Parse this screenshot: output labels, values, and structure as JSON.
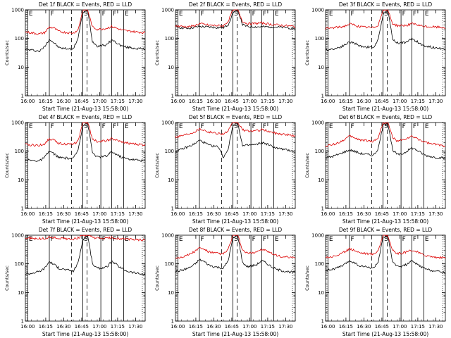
{
  "chart_data": [
    {
      "type": "line",
      "title": "Det 1f BLACK = Events, RED = LLD",
      "xlabel": "Start Time (21-Aug-13 15:58:00)",
      "ylabel": "Counts/sec",
      "ylim": [
        1,
        1000
      ],
      "yscale": "log",
      "xlim_minutes": [
        0,
        100
      ],
      "x_ticks": [
        "16:00",
        "16:15",
        "16:30",
        "16:45",
        "17:00",
        "17:15",
        "17:30"
      ],
      "y_ticks": [
        "1",
        "10",
        "100",
        "1000"
      ],
      "markers": [
        {
          "label": "E",
          "time": "16:00"
        },
        {
          "label": "F",
          "time": "16:18"
        },
        {
          "label": "S",
          "time": "16:46"
        },
        {
          "label": "F",
          "time": "17:01"
        },
        {
          "label": "F",
          "time": "17:10"
        },
        {
          "label": "E",
          "time": "17:20"
        }
      ],
      "series": [
        {
          "name": "BLACK",
          "color": "#000000",
          "values": [
            42,
            40,
            38,
            36,
            52,
            95,
            70,
            48,
            45,
            44,
            43,
            105,
            800,
            1000,
            78,
            55,
            58,
            60,
            90,
            72,
            56,
            50,
            48,
            45,
            44,
            42
          ]
        },
        {
          "name": "RED",
          "color": "#dd0000",
          "values": [
            170,
            160,
            150,
            145,
            160,
            250,
            230,
            175,
            165,
            160,
            155,
            200,
            1000,
            1000,
            250,
            210,
            215,
            230,
            260,
            230,
            200,
            185,
            180,
            170,
            165,
            160
          ]
        }
      ]
    },
    {
      "type": "line",
      "title": "Det 2f BLACK = Events, RED = LLD",
      "xlabel": "Start Time (21-Aug-13 15:58:00)",
      "ylabel": "Counts/sec",
      "ylim": [
        1,
        1000
      ],
      "yscale": "log",
      "xlim_minutes": [
        0,
        100
      ],
      "x_ticks": [
        "16:00",
        "16:15",
        "16:30",
        "16:45",
        "17:00",
        "17:15",
        "17:30"
      ],
      "y_ticks": [
        "1",
        "10",
        "100",
        "1000"
      ],
      "markers": [
        {
          "label": "E",
          "time": "16:00"
        },
        {
          "label": "F",
          "time": "16:18"
        },
        {
          "label": "S",
          "time": "16:46"
        },
        {
          "label": "F",
          "time": "17:01"
        },
        {
          "label": "F",
          "time": "17:10"
        },
        {
          "label": "E",
          "time": "17:20"
        }
      ],
      "series": [
        {
          "name": "BLACK",
          "color": "#000000",
          "values": [
            250,
            240,
            230,
            230,
            245,
            260,
            255,
            250,
            245,
            240,
            235,
            300,
            800,
            1000,
            300,
            260,
            255,
            255,
            255,
            255,
            255,
            250,
            245,
            240,
            230,
            220
          ]
        },
        {
          "name": "RED",
          "color": "#dd0000",
          "values": [
            270,
            265,
            260,
            260,
            280,
            330,
            310,
            290,
            285,
            280,
            275,
            400,
            1000,
            1000,
            400,
            330,
            330,
            340,
            350,
            330,
            310,
            300,
            290,
            280,
            270,
            260
          ]
        }
      ]
    },
    {
      "type": "line",
      "title": "Det 3f BLACK = Events, RED = LLD",
      "xlabel": "Start Time (21-Aug-13 15:58:00)",
      "ylabel": "Counts/sec",
      "ylim": [
        1,
        1000
      ],
      "yscale": "log",
      "xlim_minutes": [
        0,
        100
      ],
      "x_ticks": [
        "16:00",
        "16:15",
        "16:30",
        "16:45",
        "17:00",
        "17:15",
        "17:30"
      ],
      "y_ticks": [
        "1",
        "10",
        "100",
        "1000"
      ],
      "markers": [
        {
          "label": "E",
          "time": "16:00"
        },
        {
          "label": "F",
          "time": "16:18"
        },
        {
          "label": "S",
          "time": "16:46"
        },
        {
          "label": "F",
          "time": "17:01"
        },
        {
          "label": "F",
          "time": "17:10"
        },
        {
          "label": "E",
          "time": "17:20"
        }
      ],
      "series": [
        {
          "name": "BLACK",
          "color": "#000000",
          "values": [
            40,
            42,
            45,
            50,
            60,
            75,
            70,
            55,
            52,
            50,
            48,
            90,
            700,
            1000,
            95,
            70,
            72,
            75,
            100,
            80,
            60,
            55,
            50,
            48,
            45,
            42
          ]
        },
        {
          "name": "RED",
          "color": "#dd0000",
          "values": [
            220,
            230,
            240,
            250,
            270,
            320,
            300,
            260,
            250,
            245,
            240,
            300,
            1000,
            1000,
            330,
            280,
            285,
            290,
            330,
            300,
            270,
            260,
            255,
            250,
            245,
            240
          ]
        }
      ]
    },
    {
      "type": "line",
      "title": "Det 4f BLACK = Events, RED = LLD",
      "xlabel": "Start Time (21-Aug-13 15:58:00)",
      "ylabel": "Counts/sec",
      "ylim": [
        1,
        1000
      ],
      "yscale": "log",
      "xlim_minutes": [
        0,
        100
      ],
      "x_ticks": [
        "16:00",
        "16:15",
        "16:30",
        "16:45",
        "17:00",
        "17:15",
        "17:30"
      ],
      "y_ticks": [
        "1",
        "10",
        "100",
        "1000"
      ],
      "markers": [
        {
          "label": "E",
          "time": "16:00"
        },
        {
          "label": "F",
          "time": "16:18"
        },
        {
          "label": "S",
          "time": "16:46"
        },
        {
          "label": "F",
          "time": "17:01"
        },
        {
          "label": "F",
          "time": "17:10"
        },
        {
          "label": "E",
          "time": "17:20"
        }
      ],
      "series": [
        {
          "name": "BLACK",
          "color": "#000000",
          "values": [
            50,
            48,
            47,
            46,
            60,
            100,
            80,
            60,
            58,
            56,
            55,
            110,
            800,
            1000,
            90,
            62,
            64,
            68,
            95,
            78,
            62,
            55,
            52,
            50,
            48,
            45
          ]
        },
        {
          "name": "RED",
          "color": "#dd0000",
          "values": [
            170,
            165,
            160,
            160,
            180,
            270,
            240,
            190,
            180,
            175,
            170,
            230,
            1000,
            1000,
            270,
            220,
            225,
            235,
            270,
            240,
            210,
            195,
            185,
            175,
            170,
            165
          ]
        }
      ]
    },
    {
      "type": "line",
      "title": "Det 5f BLACK = Events, RED = LLD",
      "xlabel": "Start Time (21-Aug-13 15:58:00)",
      "ylabel": "Counts/sec",
      "ylim": [
        1,
        1000
      ],
      "yscale": "log",
      "xlim_minutes": [
        0,
        100
      ],
      "x_ticks": [
        "16:00",
        "16:15",
        "16:30",
        "16:45",
        "17:00",
        "17:15",
        "17:30"
      ],
      "y_ticks": [
        "1",
        "10",
        "100",
        "1000"
      ],
      "markers": [
        {
          "label": "E",
          "time": "16:00"
        },
        {
          "label": "F",
          "time": "16:18"
        },
        {
          "label": "S",
          "time": "16:46"
        },
        {
          "label": "F",
          "time": "17:01"
        },
        {
          "label": "F",
          "time": "17:10"
        },
        {
          "label": "E",
          "time": "17:20"
        }
      ],
      "series": [
        {
          "name": "BLACK",
          "color": "#000000",
          "values": [
            100,
            110,
            130,
            150,
            180,
            240,
            200,
            160,
            150,
            140,
            60,
            120,
            800,
            1000,
            150,
            160,
            165,
            170,
            200,
            180,
            150,
            130,
            120,
            110,
            105,
            100
          ]
        },
        {
          "name": "RED",
          "color": "#dd0000",
          "values": [
            320,
            340,
            380,
            420,
            480,
            600,
            550,
            460,
            440,
            420,
            400,
            500,
            1000,
            1000,
            560,
            500,
            510,
            520,
            560,
            520,
            460,
            420,
            400,
            380,
            360,
            340
          ]
        }
      ]
    },
    {
      "type": "line",
      "title": "Det 6f BLACK = Events, RED = LLD",
      "xlabel": "Start Time (21-Aug-13 15:58:00)",
      "ylabel": "Counts/sec",
      "ylim": [
        1,
        1000
      ],
      "yscale": "log",
      "xlim_minutes": [
        0,
        100
      ],
      "x_ticks": [
        "16:00",
        "16:15",
        "16:30",
        "16:45",
        "17:00",
        "17:15",
        "17:30"
      ],
      "y_ticks": [
        "1",
        "10",
        "100",
        "1000"
      ],
      "markers": [
        {
          "label": "E",
          "time": "16:00"
        },
        {
          "label": "F",
          "time": "16:18"
        },
        {
          "label": "S",
          "time": "16:46"
        },
        {
          "label": "F",
          "time": "17:01"
        },
        {
          "label": "F",
          "time": "17:10"
        },
        {
          "label": "E",
          "time": "17:20"
        }
      ],
      "series": [
        {
          "name": "BLACK",
          "color": "#000000",
          "values": [
            60,
            62,
            70,
            80,
            95,
            110,
            100,
            85,
            80,
            75,
            72,
            120,
            800,
            1000,
            110,
            75,
            80,
            100,
            130,
            110,
            85,
            70,
            65,
            60,
            58,
            55
          ]
        },
        {
          "name": "RED",
          "color": "#dd0000",
          "values": [
            150,
            160,
            180,
            210,
            260,
            330,
            300,
            250,
            240,
            230,
            220,
            300,
            1000,
            1000,
            300,
            220,
            240,
            280,
            320,
            280,
            230,
            200,
            180,
            170,
            160,
            150
          ]
        }
      ]
    },
    {
      "type": "line",
      "title": "Det 7f BLACK = Events, RED = LLD",
      "xlabel": "Start Time (21-Aug-13 15:58:00)",
      "ylabel": "Counts/sec",
      "ylim": [
        1,
        1000
      ],
      "yscale": "log",
      "xlim_minutes": [
        0,
        100
      ],
      "x_ticks": [
        "16:00",
        "16:15",
        "16:30",
        "16:45",
        "17:00",
        "17:15",
        "17:30"
      ],
      "y_ticks": [
        "1",
        "10",
        "100",
        "1000"
      ],
      "markers": [
        {
          "label": "E",
          "time": "16:00"
        },
        {
          "label": "F",
          "time": "16:18"
        },
        {
          "label": "S",
          "time": "16:46"
        },
        {
          "label": "F",
          "time": "17:01"
        },
        {
          "label": "F",
          "time": "17:10"
        },
        {
          "label": "E",
          "time": "17:20"
        }
      ],
      "series": [
        {
          "name": "BLACK",
          "color": "#000000",
          "values": [
            45,
            46,
            50,
            55,
            70,
            120,
            95,
            70,
            65,
            60,
            55,
            110,
            700,
            1000,
            100,
            70,
            72,
            78,
            120,
            95,
            70,
            58,
            52,
            48,
            45,
            42
          ]
        },
        {
          "name": "RED",
          "color": "#dd0000",
          "values": [
            800,
            780,
            760,
            750,
            760,
            850,
            820,
            780,
            760,
            750,
            740,
            800,
            1000,
            1000,
            850,
            780,
            770,
            780,
            820,
            780,
            740,
            720,
            710,
            700,
            690,
            680
          ]
        }
      ]
    },
    {
      "type": "line",
      "title": "Det 8f BLACK = Events, RED = LLD",
      "xlabel": "Start Time (21-Aug-13 15:58:00)",
      "ylabel": "Counts/sec",
      "ylim": [
        1,
        1000
      ],
      "yscale": "log",
      "xlim_minutes": [
        0,
        100
      ],
      "x_ticks": [
        "16:00",
        "16:15",
        "16:30",
        "16:45",
        "17:00",
        "17:15",
        "17:30"
      ],
      "y_ticks": [
        "1",
        "10",
        "100",
        "1000"
      ],
      "markers": [
        {
          "label": "E",
          "time": "16:00"
        },
        {
          "label": "F",
          "time": "16:18"
        },
        {
          "label": "S",
          "time": "16:46"
        },
        {
          "label": "F",
          "time": "17:01"
        },
        {
          "label": "F",
          "time": "17:10"
        },
        {
          "label": "E",
          "time": "17:20"
        }
      ],
      "series": [
        {
          "name": "BLACK",
          "color": "#000000",
          "values": [
            55,
            58,
            65,
            75,
            95,
            140,
            120,
            90,
            80,
            75,
            70,
            130,
            800,
            1000,
            110,
            80,
            85,
            95,
            130,
            105,
            80,
            65,
            58,
            55,
            52,
            50
          ]
        },
        {
          "name": "RED",
          "color": "#dd0000",
          "values": [
            160,
            170,
            190,
            220,
            270,
            360,
            320,
            260,
            240,
            230,
            220,
            320,
            1000,
            1000,
            300,
            230,
            240,
            270,
            320,
            280,
            230,
            200,
            180,
            170,
            165,
            160
          ]
        }
      ]
    },
    {
      "type": "line",
      "title": "Det 9f BLACK = Events, RED = LLD",
      "xlabel": "Start Time (21-Aug-13 15:58:00)",
      "ylabel": "Counts/sec",
      "ylim": [
        1,
        1000
      ],
      "yscale": "log",
      "xlim_minutes": [
        0,
        100
      ],
      "x_ticks": [
        "16:00",
        "16:15",
        "16:30",
        "16:45",
        "17:00",
        "17:15",
        "17:30"
      ],
      "y_ticks": [
        "1",
        "10",
        "100",
        "1000"
      ],
      "markers": [
        {
          "label": "E",
          "time": "16:00"
        },
        {
          "label": "F",
          "time": "16:18"
        },
        {
          "label": "S",
          "time": "16:46"
        },
        {
          "label": "F",
          "time": "17:01"
        },
        {
          "label": "F",
          "time": "17:10"
        },
        {
          "label": "E",
          "time": "17:20"
        }
      ],
      "series": [
        {
          "name": "BLACK",
          "color": "#000000",
          "values": [
            60,
            62,
            68,
            78,
            95,
            130,
            110,
            85,
            80,
            75,
            70,
            120,
            800,
            1000,
            110,
            80,
            85,
            95,
            125,
            100,
            78,
            65,
            60,
            56,
            52,
            50
          ]
        },
        {
          "name": "RED",
          "color": "#dd0000",
          "values": [
            170,
            175,
            190,
            215,
            260,
            340,
            300,
            250,
            235,
            225,
            215,
            300,
            1000,
            1000,
            290,
            225,
            235,
            260,
            300,
            265,
            220,
            195,
            180,
            170,
            165,
            160
          ]
        }
      ]
    }
  ]
}
